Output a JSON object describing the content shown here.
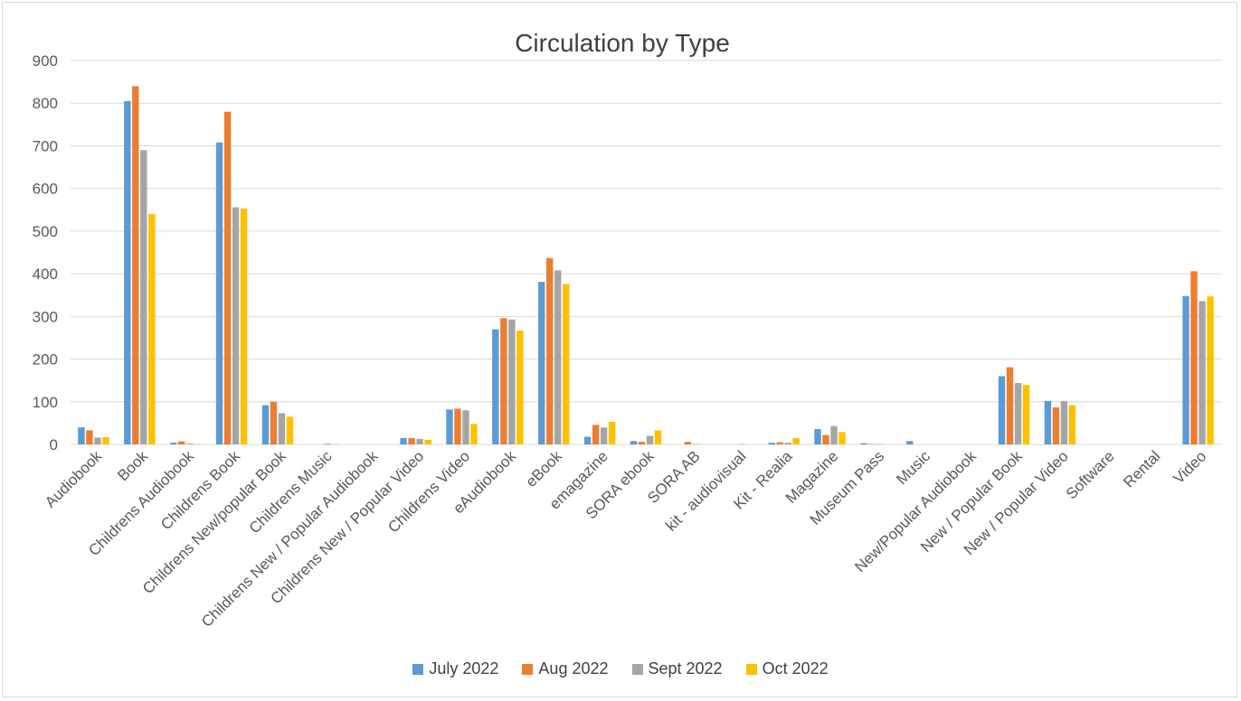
{
  "chart_data": {
    "type": "bar",
    "title": "Circulation by Type",
    "xlabel": "",
    "ylabel": "",
    "ylim": [
      0,
      900
    ],
    "yticks": [
      0,
      100,
      200,
      300,
      400,
      500,
      600,
      700,
      800,
      900
    ],
    "grid": true,
    "legend_position": "bottom",
    "categories": [
      "Audiobook",
      "Book",
      "Childrens Audiobook",
      "Childrens Book",
      "Childrens New/popular Book",
      "Childrens Music",
      "Childrens New / Popular Audiobook",
      "Childrens New / Popular Video",
      "Childrens Video",
      "eAudiobook",
      "eBook",
      "emagazine",
      "SORA ebook",
      "SORA AB",
      "kit - audiovisual",
      "Kit - Realia",
      "Magazine",
      "Museum Pass",
      "Music",
      "New/Popular Audiobook",
      "New / Popular Book",
      "New / Popular Video",
      "Software",
      "Rental",
      "Video"
    ],
    "series": [
      {
        "name": "July 2022",
        "color": "#5b9bd5",
        "values": [
          40,
          805,
          4,
          708,
          92,
          0,
          0,
          15,
          82,
          270,
          381,
          18,
          8,
          0,
          0,
          4,
          36,
          3,
          8,
          0,
          160,
          102,
          0,
          0,
          348
        ]
      },
      {
        "name": "Aug 2022",
        "color": "#ed7d31",
        "values": [
          33,
          840,
          7,
          780,
          100,
          0,
          0,
          15,
          84,
          296,
          437,
          46,
          6,
          6,
          0,
          5,
          22,
          1,
          0,
          0,
          181,
          87,
          0,
          0,
          406
        ]
      },
      {
        "name": "Sept 2022",
        "color": "#a5a5a5",
        "values": [
          16,
          690,
          2,
          556,
          73,
          2,
          0,
          13,
          80,
          293,
          408,
          40,
          20,
          1,
          1,
          4,
          43,
          1,
          0,
          0,
          144,
          102,
          0,
          0,
          336
        ]
      },
      {
        "name": "Oct 2022",
        "color": "#ffc000",
        "values": [
          17,
          540,
          1,
          553,
          65,
          1,
          0,
          11,
          48,
          267,
          376,
          53,
          33,
          0,
          0,
          15,
          29,
          0,
          0,
          0,
          139,
          92,
          0,
          0,
          347
        ]
      }
    ]
  }
}
